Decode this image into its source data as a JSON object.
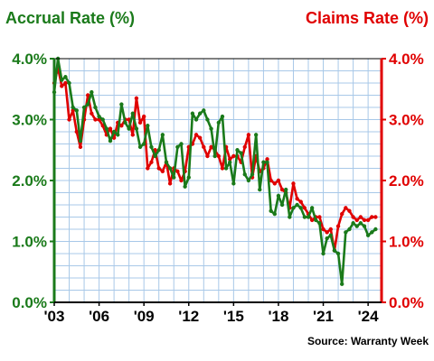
{
  "chart_data": {
    "type": "line",
    "title_left": "Accrual Rate (%)",
    "title_right": "Claims Rate (%)",
    "source": "Source: Warranty Week",
    "x_tick_labels": [
      "'03",
      "'06",
      "'09",
      "'12",
      "'15",
      "'18",
      "'21",
      "'24"
    ],
    "x_tick_years": [
      2003,
      2006,
      2009,
      2012,
      2015,
      2018,
      2021,
      2024
    ],
    "xlim": [
      2003,
      2024.9
    ],
    "left_axis": {
      "ylim": [
        0,
        4
      ],
      "tick_values": [
        0,
        1,
        2,
        3,
        4
      ],
      "tick_labels": [
        "0.0%",
        "1.0%",
        "2.0%",
        "3.0%",
        "4.0%"
      ]
    },
    "right_axis": {
      "ylim": [
        0,
        4
      ],
      "tick_values": [
        0,
        1,
        2,
        3,
        4
      ],
      "tick_labels": [
        "0.0%",
        "1.0%",
        "2.0%",
        "3.0%",
        "4.0%"
      ]
    },
    "grid": true,
    "colors": {
      "accrual": "#1a7a1a",
      "claims": "#e00000",
      "grid": "#a8c8e8",
      "border": "#000000"
    },
    "series": [
      {
        "name": "Accrual Rate (%)",
        "axis": "left",
        "color": "#1a7a1a",
        "x": [
          2003.0,
          2003.25,
          2003.5,
          2003.75,
          2004.0,
          2004.25,
          2004.5,
          2004.75,
          2005.0,
          2005.25,
          2005.5,
          2005.75,
          2006.0,
          2006.25,
          2006.5,
          2006.75,
          2007.0,
          2007.25,
          2007.5,
          2007.75,
          2008.0,
          2008.25,
          2008.5,
          2008.75,
          2009.0,
          2009.25,
          2009.5,
          2009.75,
          2010.0,
          2010.25,
          2010.5,
          2010.75,
          2011.0,
          2011.25,
          2011.5,
          2011.75,
          2012.0,
          2012.25,
          2012.5,
          2012.75,
          2013.0,
          2013.25,
          2013.5,
          2013.75,
          2014.0,
          2014.25,
          2014.5,
          2014.75,
          2015.0,
          2015.25,
          2015.5,
          2015.75,
          2016.0,
          2016.25,
          2016.5,
          2016.75,
          2017.0,
          2017.25,
          2017.5,
          2017.75,
          2018.0,
          2018.25,
          2018.5,
          2018.75,
          2019.0,
          2019.25,
          2019.5,
          2019.75,
          2020.0,
          2020.25,
          2020.5,
          2020.75,
          2021.0,
          2021.25,
          2021.5,
          2021.75,
          2022.0,
          2022.25,
          2022.5,
          2022.75,
          2023.0,
          2023.25,
          2023.5,
          2023.75,
          2024.0,
          2024.25,
          2024.5
        ],
        "values": [
          3.45,
          4.0,
          3.65,
          3.7,
          3.6,
          3.2,
          3.15,
          2.65,
          3.2,
          3.25,
          3.45,
          3.2,
          3.05,
          3.0,
          2.85,
          2.65,
          2.8,
          2.75,
          3.25,
          2.95,
          2.85,
          3.1,
          2.85,
          2.55,
          2.6,
          2.9,
          2.55,
          2.4,
          2.5,
          2.75,
          2.3,
          2.2,
          2.05,
          2.55,
          2.6,
          1.9,
          2.05,
          3.1,
          3.0,
          3.1,
          3.15,
          3.0,
          2.85,
          2.4,
          2.95,
          3.05,
          2.2,
          2.3,
          1.95,
          2.5,
          2.45,
          2.1,
          2.0,
          2.1,
          2.75,
          1.85,
          2.3,
          2.3,
          1.5,
          1.45,
          1.75,
          1.6,
          1.85,
          1.4,
          1.55,
          1.6,
          1.55,
          1.4,
          1.4,
          1.55,
          1.35,
          1.3,
          0.8,
          1.05,
          1.1,
          0.85,
          0.8,
          0.3,
          1.15,
          1.2,
          1.3,
          1.25,
          1.3,
          1.25,
          1.1,
          1.15,
          1.2
        ]
      },
      {
        "name": "Claims Rate (%)",
        "axis": "right",
        "color": "#e00000",
        "x": [
          2003.0,
          2003.25,
          2003.5,
          2003.75,
          2004.0,
          2004.25,
          2004.5,
          2004.75,
          2005.0,
          2005.25,
          2005.5,
          2005.75,
          2006.0,
          2006.25,
          2006.5,
          2006.75,
          2007.0,
          2007.25,
          2007.5,
          2007.75,
          2008.0,
          2008.25,
          2008.5,
          2008.75,
          2009.0,
          2009.25,
          2009.5,
          2009.75,
          2010.0,
          2010.25,
          2010.5,
          2010.75,
          2011.0,
          2011.25,
          2011.5,
          2011.75,
          2012.0,
          2012.25,
          2012.5,
          2012.75,
          2013.0,
          2013.25,
          2013.5,
          2013.75,
          2014.0,
          2014.25,
          2014.5,
          2014.75,
          2015.0,
          2015.25,
          2015.5,
          2015.75,
          2016.0,
          2016.25,
          2016.5,
          2016.75,
          2017.0,
          2017.25,
          2017.5,
          2017.75,
          2018.0,
          2018.25,
          2018.5,
          2018.75,
          2019.0,
          2019.25,
          2019.5,
          2019.75,
          2020.0,
          2020.25,
          2020.5,
          2020.75,
          2021.0,
          2021.25,
          2021.5,
          2021.75,
          2022.0,
          2022.25,
          2022.5,
          2022.75,
          2023.0,
          2023.25,
          2023.5,
          2023.75,
          2024.0,
          2024.25,
          2024.5
        ],
        "values": [
          3.6,
          3.85,
          3.55,
          3.6,
          3.0,
          3.15,
          2.8,
          2.55,
          3.0,
          3.4,
          3.1,
          3.0,
          3.0,
          2.9,
          2.75,
          2.85,
          2.7,
          2.95,
          2.9,
          3.0,
          3.0,
          2.75,
          3.35,
          2.95,
          3.05,
          2.2,
          2.3,
          2.5,
          2.2,
          2.15,
          2.3,
          1.95,
          2.2,
          2.15,
          2.0,
          2.15,
          2.55,
          2.6,
          2.75,
          2.7,
          2.55,
          2.4,
          2.55,
          2.5,
          2.4,
          2.2,
          2.55,
          2.35,
          2.4,
          2.4,
          2.3,
          2.55,
          2.75,
          2.05,
          2.4,
          2.15,
          2.2,
          2.35,
          2.0,
          1.95,
          2.0,
          1.85,
          1.8,
          1.55,
          1.95,
          1.7,
          1.65,
          1.55,
          1.45,
          1.35,
          1.4,
          1.4,
          1.2,
          1.15,
          1.2,
          0.85,
          1.25,
          1.45,
          1.55,
          1.5,
          1.4,
          1.35,
          1.4,
          1.35,
          1.35,
          1.4,
          1.4
        ]
      }
    ]
  }
}
